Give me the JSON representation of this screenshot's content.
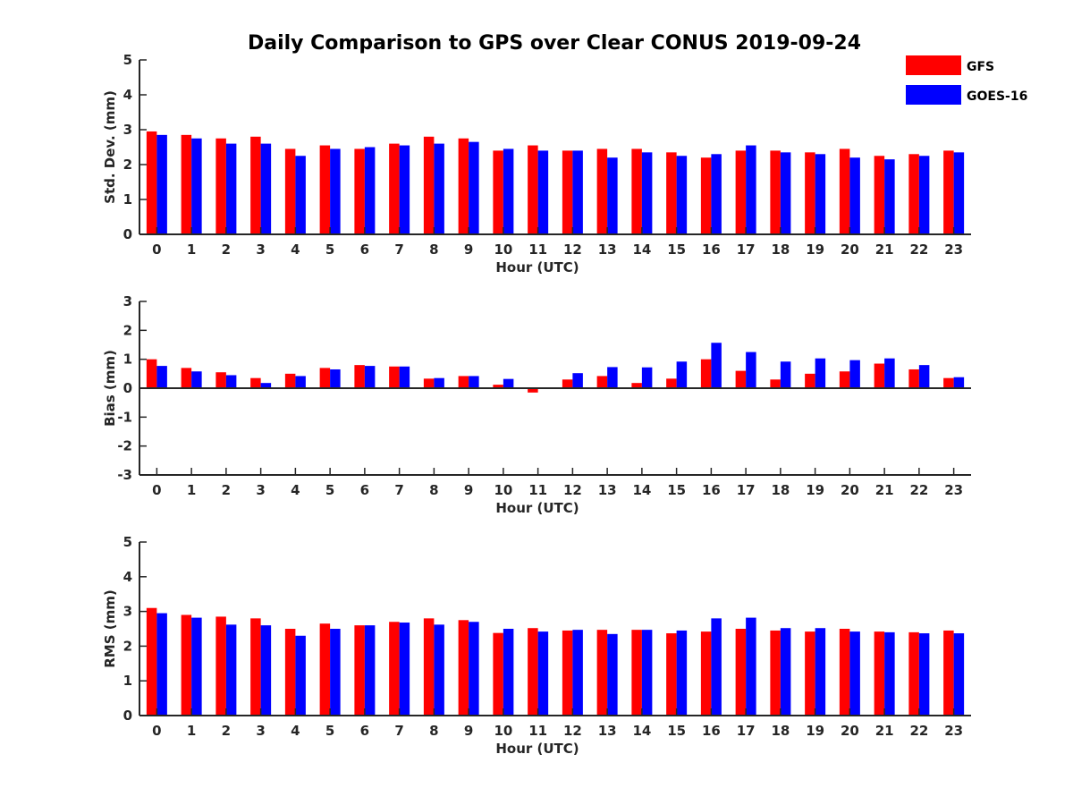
{
  "chart_data": {
    "type": "bar",
    "title": "Daily Comparison to GPS over Clear CONUS 2019-09-24",
    "legend": {
      "placement": "top-right",
      "entries": [
        "GFS",
        "GOES-16"
      ]
    },
    "colors": {
      "GFS": "#ff0000",
      "GOES-16": "#0000ff"
    },
    "subplots": [
      {
        "ylabel": "Std. Dev. (mm)",
        "xlabel": "Hour (UTC)",
        "ylim": [
          0,
          5
        ],
        "yticks": [
          0,
          1,
          2,
          3,
          4,
          5
        ],
        "categories": [
          "0",
          "1",
          "2",
          "3",
          "4",
          "5",
          "6",
          "7",
          "8",
          "9",
          "10",
          "11",
          "12",
          "13",
          "14",
          "15",
          "16",
          "17",
          "18",
          "19",
          "20",
          "21",
          "22",
          "23"
        ],
        "series": [
          {
            "name": "GFS",
            "values": [
              2.95,
              2.85,
              2.75,
              2.8,
              2.45,
              2.55,
              2.45,
              2.6,
              2.8,
              2.75,
              2.4,
              2.55,
              2.4,
              2.45,
              2.45,
              2.35,
              2.2,
              2.4,
              2.4,
              2.35,
              2.45,
              2.25,
              2.3,
              2.4
            ]
          },
          {
            "name": "GOES-16",
            "values": [
              2.85,
              2.75,
              2.6,
              2.6,
              2.25,
              2.45,
              2.5,
              2.55,
              2.6,
              2.65,
              2.45,
              2.4,
              2.4,
              2.2,
              2.35,
              2.25,
              2.3,
              2.55,
              2.35,
              2.3,
              2.2,
              2.15,
              2.25,
              2.35
            ]
          }
        ]
      },
      {
        "ylabel": "Bias (mm)",
        "xlabel": "Hour (UTC)",
        "ylim": [
          -3,
          3
        ],
        "yticks": [
          -3,
          -2,
          -1,
          0,
          1,
          2,
          3
        ],
        "categories": [
          "0",
          "1",
          "2",
          "3",
          "4",
          "5",
          "6",
          "7",
          "8",
          "9",
          "10",
          "11",
          "12",
          "13",
          "14",
          "15",
          "16",
          "17",
          "18",
          "19",
          "20",
          "21",
          "22",
          "23"
        ],
        "series": [
          {
            "name": "GFS",
            "values": [
              1.0,
              0.7,
              0.55,
              0.35,
              0.5,
              0.7,
              0.8,
              0.75,
              0.33,
              0.42,
              0.12,
              -0.15,
              0.3,
              0.42,
              0.18,
              0.33,
              1.0,
              0.6,
              0.3,
              0.5,
              0.58,
              0.85,
              0.65,
              0.35
            ]
          },
          {
            "name": "GOES-16",
            "values": [
              0.77,
              0.58,
              0.45,
              0.18,
              0.42,
              0.65,
              0.77,
              0.75,
              0.35,
              0.42,
              0.32,
              0.0,
              0.52,
              0.73,
              0.72,
              0.92,
              1.57,
              1.25,
              0.92,
              1.03,
              0.97,
              1.03,
              0.8,
              0.38
            ]
          }
        ]
      },
      {
        "ylabel": "RMS (mm)",
        "xlabel": "Hour (UTC)",
        "ylim": [
          0,
          5
        ],
        "yticks": [
          0,
          1,
          2,
          3,
          4,
          5
        ],
        "categories": [
          "0",
          "1",
          "2",
          "3",
          "4",
          "5",
          "6",
          "7",
          "8",
          "9",
          "10",
          "11",
          "12",
          "13",
          "14",
          "15",
          "16",
          "17",
          "18",
          "19",
          "20",
          "21",
          "22",
          "23"
        ],
        "series": [
          {
            "name": "GFS",
            "values": [
              3.1,
              2.9,
              2.85,
              2.8,
              2.5,
              2.65,
              2.6,
              2.7,
              2.8,
              2.75,
              2.38,
              2.52,
              2.45,
              2.47,
              2.47,
              2.37,
              2.42,
              2.5,
              2.45,
              2.42,
              2.5,
              2.42,
              2.4,
              2.45
            ]
          },
          {
            "name": "GOES-16",
            "values": [
              2.95,
              2.82,
              2.62,
              2.6,
              2.3,
              2.5,
              2.6,
              2.68,
              2.62,
              2.7,
              2.5,
              2.42,
              2.47,
              2.35,
              2.47,
              2.45,
              2.8,
              2.82,
              2.52,
              2.52,
              2.42,
              2.4,
              2.37,
              2.37
            ]
          }
        ]
      }
    ]
  }
}
